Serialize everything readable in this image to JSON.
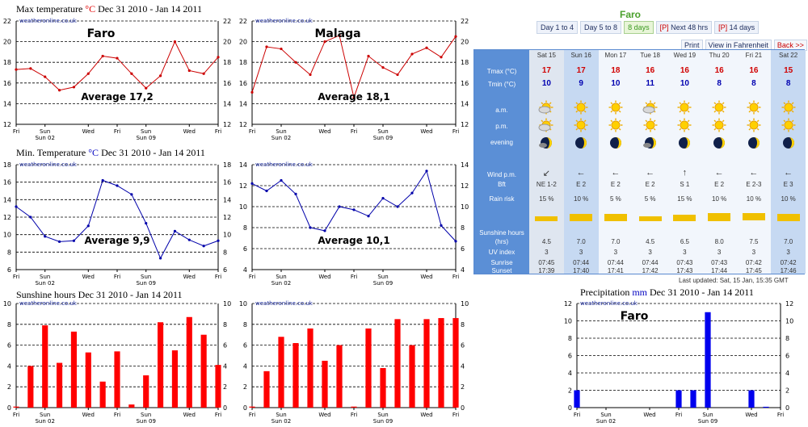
{
  "titles": {
    "max": {
      "text": "Max temperature ",
      "unit": "°C",
      "range": " Dec 31 2010 - Jan 14 2011"
    },
    "min": {
      "text": "Min. Temperature ",
      "unit": "°C",
      "range": " Dec 31 2010 - Jan 14 2011"
    },
    "sun": {
      "text": "Sunshine hours",
      "range": " Dec 31 2010 - Jan 14 2011"
    },
    "precip": {
      "text": "Precipitation ",
      "unit": "mm",
      "range": " Dec 31 2010 - Jan 14 2011"
    }
  },
  "watermark": "weatheronline.co.uk",
  "x_ticks": {
    "top": [
      "Fri",
      "Sun",
      "Wed",
      "Fri",
      "Sun",
      "Wed",
      "Fri"
    ],
    "bottom": [
      "Sun 02",
      "Sun 09"
    ],
    "days": [
      0,
      2,
      5,
      7,
      9,
      12,
      14
    ],
    "bottom_days": [
      2,
      9
    ]
  },
  "chart_data": [
    {
      "id": "max-faro",
      "type": "line",
      "title": "Faro",
      "annotation": "Average 17,2",
      "ylim": [
        12,
        22
      ],
      "yticks": [
        12,
        14,
        16,
        18,
        20,
        22
      ],
      "color": "#cc0000",
      "x": [
        0,
        1,
        2,
        3,
        4,
        5,
        6,
        7,
        8,
        9,
        10,
        11,
        12,
        13,
        14
      ],
      "values": [
        17.3,
        17.4,
        16.6,
        15.3,
        15.6,
        16.9,
        18.6,
        18.4,
        16.9,
        15.5,
        16.7,
        20.0,
        17.2,
        16.9,
        18.5
      ]
    },
    {
      "id": "max-malaga",
      "type": "line",
      "title": "Malaga",
      "annotation": "Average 18,1",
      "ylim": [
        12,
        22
      ],
      "yticks": [
        12,
        14,
        16,
        18,
        20,
        22
      ],
      "color": "#cc0000",
      "x": [
        0,
        1,
        2,
        3,
        4,
        5,
        6,
        7,
        8,
        9,
        10,
        11,
        12,
        13,
        14
      ],
      "values": [
        15.1,
        19.5,
        19.3,
        18.0,
        16.8,
        20.0,
        20.6,
        14.6,
        18.6,
        17.5,
        16.8,
        18.8,
        19.4,
        18.5,
        20.5
      ]
    },
    {
      "id": "min-faro",
      "type": "line",
      "annotation": "Average 9,9",
      "ylim": [
        6,
        18
      ],
      "yticks": [
        6,
        8,
        10,
        12,
        14,
        16,
        18
      ],
      "color": "#0000aa",
      "x": [
        0,
        1,
        2,
        3,
        4,
        5,
        6,
        7,
        8,
        9,
        10,
        11,
        12,
        13,
        14
      ],
      "values": [
        13.2,
        12.0,
        9.8,
        9.2,
        9.3,
        11.0,
        16.2,
        15.6,
        14.6,
        11.3,
        7.3,
        10.4,
        9.4,
        8.7,
        9.3
      ]
    },
    {
      "id": "min-malaga",
      "type": "line",
      "annotation": "Average 10,1",
      "ylim": [
        4,
        14
      ],
      "yticks": [
        4,
        6,
        8,
        10,
        12,
        14
      ],
      "color": "#0000aa",
      "x": [
        0,
        1,
        2,
        3,
        4,
        5,
        6,
        7,
        8,
        9,
        10,
        11,
        12,
        13,
        14
      ],
      "values": [
        12.2,
        11.5,
        12.5,
        11.2,
        8.0,
        7.7,
        10.0,
        9.7,
        9.1,
        10.8,
        10.0,
        11.3,
        13.4,
        8.2,
        6.7
      ]
    },
    {
      "id": "sun-faro",
      "type": "bar",
      "ylim": [
        0,
        10
      ],
      "yticks": [
        0,
        2,
        4,
        6,
        8,
        10
      ],
      "color": "#ff0000",
      "x": [
        0,
        1,
        2,
        3,
        4,
        5,
        6,
        7,
        8,
        9,
        10,
        11,
        12,
        13,
        14
      ],
      "values": [
        0.1,
        4.0,
        7.9,
        4.3,
        7.3,
        5.3,
        2.5,
        5.4,
        0.3,
        3.1,
        8.2,
        5.5,
        8.7,
        7.0,
        4.1
      ]
    },
    {
      "id": "sun-malaga",
      "type": "bar",
      "ylim": [
        0,
        10
      ],
      "yticks": [
        0,
        2,
        4,
        6,
        8,
        10
      ],
      "color": "#ff0000",
      "x": [
        0,
        1,
        2,
        3,
        4,
        5,
        6,
        7,
        8,
        9,
        10,
        11,
        12,
        13,
        14
      ],
      "values": [
        0.1,
        3.5,
        6.8,
        6.2,
        7.6,
        4.5,
        6.0,
        0.1,
        7.6,
        3.8,
        8.5,
        6.0,
        8.5,
        8.6,
        8.6
      ]
    },
    {
      "id": "precip-faro",
      "type": "bar",
      "title": "Faro",
      "ylim": [
        0,
        12
      ],
      "yticks": [
        0,
        2,
        4,
        6,
        8,
        10,
        12
      ],
      "color": "#0000ee",
      "x": [
        0,
        1,
        2,
        3,
        4,
        5,
        6,
        7,
        8,
        9,
        10,
        11,
        12,
        13,
        14
      ],
      "values": [
        2.0,
        0,
        0,
        0,
        0,
        0,
        0,
        2.0,
        2.0,
        11.0,
        0,
        0,
        2.0,
        0.1,
        0
      ]
    }
  ],
  "forecast": {
    "title": "Faro",
    "tabs": [
      {
        "label": "Day 1 to 4",
        "p": ""
      },
      {
        "label": "Day 5 to 8",
        "p": ""
      },
      {
        "label": "8 days",
        "p": "",
        "selected": true
      },
      {
        "label": " Next 48 hrs",
        "p": "[P]"
      },
      {
        "label": " 14 days",
        "p": "[P]"
      }
    ],
    "buttons": {
      "print": "Print",
      "fahrenheit": "View in Fahrenheit",
      "back": "Back >>"
    },
    "row_labels": {
      "tmax": "Tmax (°C)",
      "tmin": "Tmin (°C)",
      "am": "a.m.",
      "pm": "p.m.",
      "evening": "evening",
      "wind": "Wind p.m.",
      "bft": "Bft",
      "rain": "Rain risk",
      "sunshine": "Sunshine hours",
      "hrs": "(hrs)",
      "uv": "UV index",
      "sunrise": "Sunrise",
      "sunset": "Sunset"
    },
    "days": [
      {
        "name": "Sat 15",
        "tmax": "17",
        "tmin": "10",
        "am": "partly-cloudy-icon",
        "pm": "partly-cloudy-icon",
        "eve": "cloudy-moon-icon",
        "arrow": "↙",
        "bft": "NE 1-2",
        "rain": "15 %",
        "sun": "4.5",
        "sun_frac": 0.56,
        "uv": "3",
        "rise": "07:45",
        "set": "17:39",
        "kind": "today"
      },
      {
        "name": "Sun 16",
        "tmax": "17",
        "tmin": "9",
        "am": "sun-icon",
        "pm": "sun-icon",
        "eve": "moon-icon",
        "arrow": "←",
        "bft": "E 2",
        "rain": "10 %",
        "sun": "7.0",
        "sun_frac": 0.88,
        "uv": "3",
        "rise": "07:44",
        "set": "17:40",
        "kind": "wk"
      },
      {
        "name": "Mon 17",
        "tmax": "18",
        "tmin": "10",
        "am": "sun-icon",
        "pm": "sun-icon",
        "eve": "moon-icon",
        "arrow": "←",
        "bft": "E 2",
        "rain": "5 %",
        "sun": "7.0",
        "sun_frac": 0.88,
        "uv": "3",
        "rise": "07:44",
        "set": "17:41",
        "kind": "wd"
      },
      {
        "name": "Tue 18",
        "tmax": "16",
        "tmin": "11",
        "am": "partly-cloudy-icon",
        "pm": "sun-icon",
        "eve": "cloudy-moon-icon",
        "arrow": "←",
        "bft": "E 2",
        "rain": "5 %",
        "sun": "4.5",
        "sun_frac": 0.56,
        "uv": "3",
        "rise": "07:44",
        "set": "17:42",
        "kind": "wd"
      },
      {
        "name": "Wed 19",
        "tmax": "16",
        "tmin": "10",
        "am": "sun-icon",
        "pm": "sun-icon",
        "eve": "moon-icon",
        "arrow": "↑",
        "bft": "S 1",
        "rain": "15 %",
        "sun": "6.5",
        "sun_frac": 0.81,
        "uv": "3",
        "rise": "07:43",
        "set": "17:43",
        "kind": "wd"
      },
      {
        "name": "Thu 20",
        "tmax": "16",
        "tmin": "8",
        "am": "sun-icon",
        "pm": "sun-icon",
        "eve": "moon-icon",
        "arrow": "←",
        "bft": "E 2",
        "rain": "10 %",
        "sun": "8.0",
        "sun_frac": 1.0,
        "uv": "3",
        "rise": "07:43",
        "set": "17:44",
        "kind": "wd"
      },
      {
        "name": "Fri 21",
        "tmax": "16",
        "tmin": "8",
        "am": "sun-icon",
        "pm": "sun-icon",
        "eve": "moon-icon",
        "arrow": "←",
        "bft": "E 2-3",
        "rain": "10 %",
        "sun": "7.5",
        "sun_frac": 0.94,
        "uv": "3",
        "rise": "07:42",
        "set": "17:45",
        "kind": "wd"
      },
      {
        "name": "Sat 22",
        "tmax": "15",
        "tmin": "8",
        "am": "sun-icon",
        "pm": "sun-icon",
        "eve": "moon-icon",
        "arrow": "←",
        "bft": "E 3",
        "rain": "10 %",
        "sun": "7.0",
        "sun_frac": 0.88,
        "uv": "3",
        "rise": "07:42",
        "set": "17:46",
        "kind": "wk"
      }
    ],
    "updated": "Last updated: Sat, 15 Jan, 15:35 GMT"
  }
}
